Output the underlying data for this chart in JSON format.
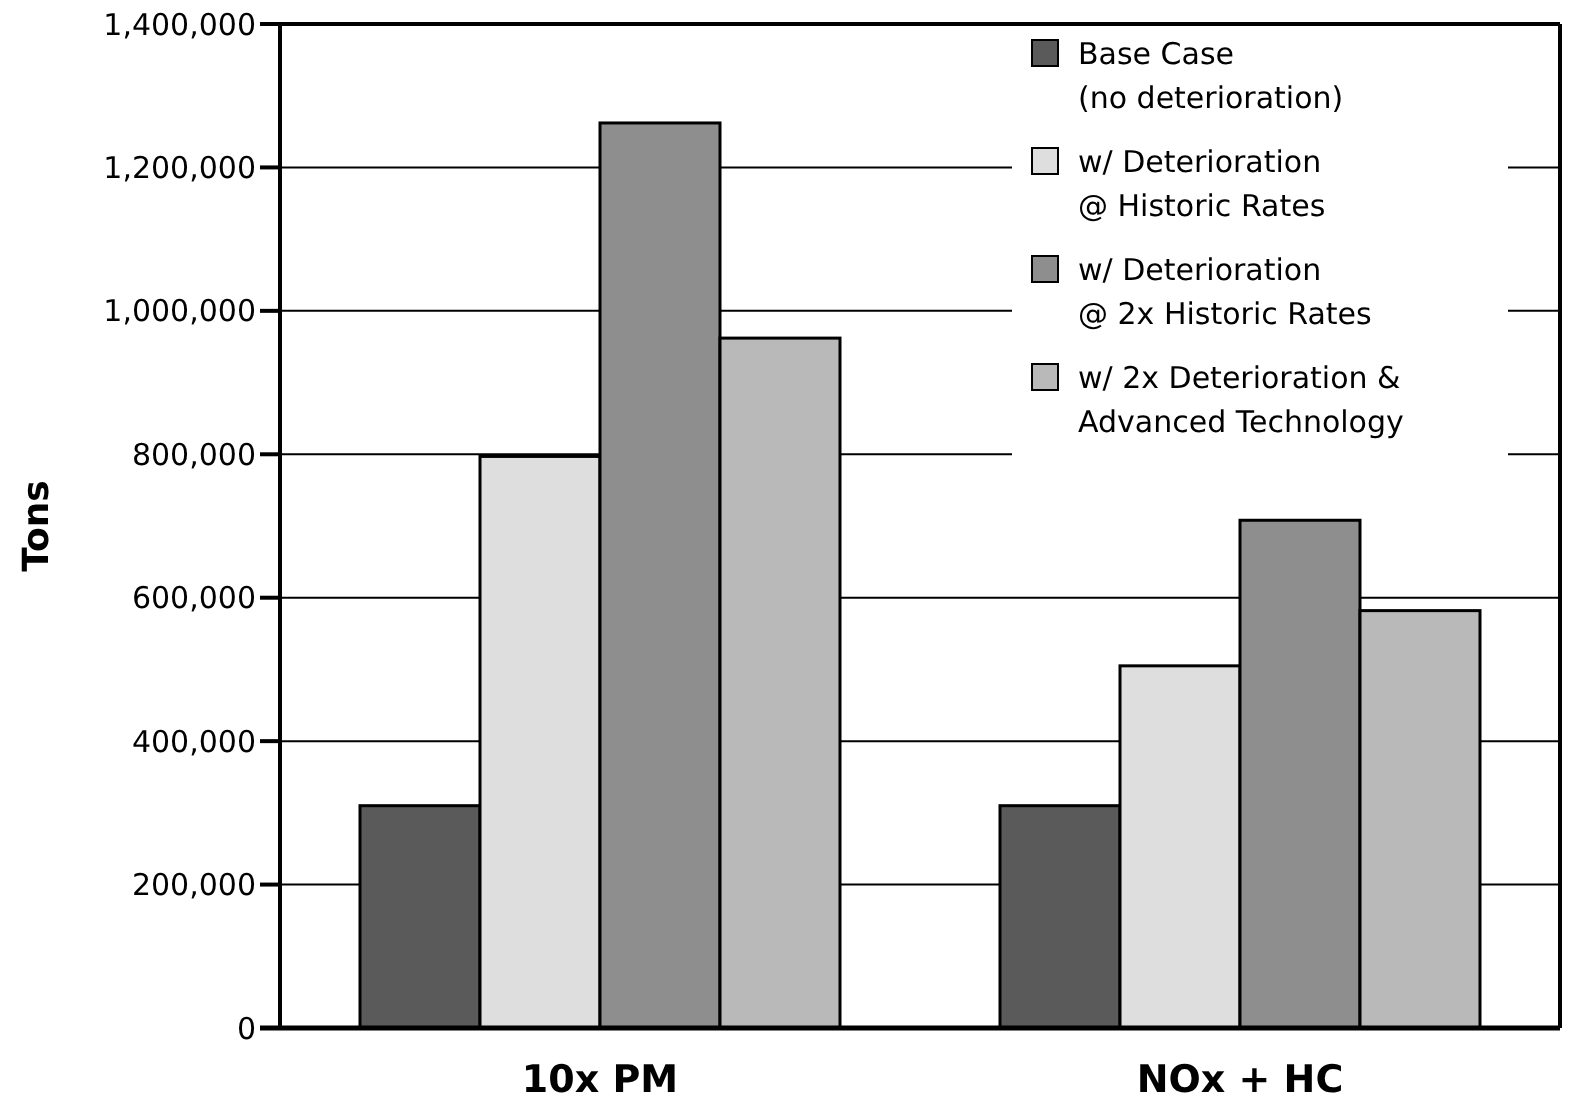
{
  "chart_data": {
    "type": "bar",
    "ylabel": "Tons",
    "categories": [
      "10x PM",
      "NOx + HC"
    ],
    "series": [
      {
        "name": "Base Case\n(no deterioration)",
        "color": "#5a5a5a",
        "values": [
          310000,
          310000
        ]
      },
      {
        "name": "w/ Deterioration\n@ Historic Rates",
        "color": "#dedede",
        "values": [
          797000,
          505000
        ]
      },
      {
        "name": "w/ Deterioration\n@ 2x Historic Rates",
        "color": "#8e8e8e",
        "values": [
          1262000,
          708000
        ]
      },
      {
        "name": "w/ 2x Deterioration &\nAdvanced Technology",
        "color": "#b9b9b9",
        "values": [
          962000,
          582000
        ]
      }
    ],
    "ylim": [
      0,
      1400000
    ],
    "yticks": [
      {
        "value": 0,
        "label": "0"
      },
      {
        "value": 200000,
        "label": "200,000"
      },
      {
        "value": 400000,
        "label": "400,000"
      },
      {
        "value": 600000,
        "label": "600,000"
      },
      {
        "value": 800000,
        "label": "800,000"
      },
      {
        "value": 1000000,
        "label": "1,000,000"
      },
      {
        "value": 1200000,
        "label": "1,200,000"
      },
      {
        "value": 1400000,
        "label": "1,400,000"
      }
    ],
    "grid": "y",
    "legend": "top right"
  }
}
